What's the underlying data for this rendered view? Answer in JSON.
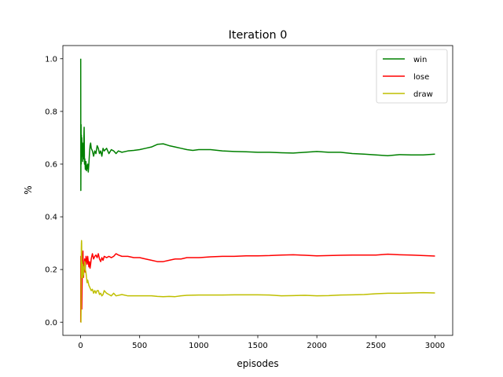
{
  "chart_data": {
    "type": "line",
    "title": "Iteration 0",
    "xlabel": "episodes",
    "ylabel": "%",
    "xlim": [
      -150,
      3150
    ],
    "ylim": [
      -0.05,
      1.05
    ],
    "xticks": [
      0,
      500,
      1000,
      1500,
      2000,
      2500,
      3000
    ],
    "xtick_labels": [
      "0",
      "500",
      "1000",
      "1500",
      "2000",
      "2500",
      "3000"
    ],
    "yticks": [
      0.0,
      0.2,
      0.4,
      0.6,
      0.8,
      1.0
    ],
    "ytick_labels": [
      "0.0",
      "0.2",
      "0.4",
      "0.6",
      "0.8",
      "1.0"
    ],
    "grid": false,
    "legend_position": "top-right",
    "series": [
      {
        "name": "win",
        "color": "#008000",
        "points": [
          [
            1,
            1.0
          ],
          [
            2,
            0.5
          ],
          [
            3,
            0.67
          ],
          [
            4,
            0.75
          ],
          [
            5,
            0.6
          ],
          [
            6,
            0.67
          ],
          [
            7,
            0.71
          ],
          [
            8,
            0.63
          ],
          [
            10,
            0.7
          ],
          [
            12,
            0.67
          ],
          [
            14,
            0.64
          ],
          [
            16,
            0.63
          ],
          [
            18,
            0.61
          ],
          [
            20,
            0.65
          ],
          [
            22,
            0.68
          ],
          [
            24,
            0.63
          ],
          [
            26,
            0.62
          ],
          [
            28,
            0.7
          ],
          [
            30,
            0.74
          ],
          [
            33,
            0.6
          ],
          [
            36,
            0.62
          ],
          [
            40,
            0.58
          ],
          [
            45,
            0.61
          ],
          [
            50,
            0.575
          ],
          [
            55,
            0.59
          ],
          [
            60,
            0.6
          ],
          [
            65,
            0.57
          ],
          [
            70,
            0.6
          ],
          [
            75,
            0.64
          ],
          [
            80,
            0.67
          ],
          [
            85,
            0.68
          ],
          [
            90,
            0.66
          ],
          [
            100,
            0.65
          ],
          [
            110,
            0.63
          ],
          [
            120,
            0.65
          ],
          [
            130,
            0.64
          ],
          [
            140,
            0.67
          ],
          [
            150,
            0.66
          ],
          [
            160,
            0.64
          ],
          [
            170,
            0.65
          ],
          [
            180,
            0.63
          ],
          [
            190,
            0.66
          ],
          [
            200,
            0.65
          ],
          [
            220,
            0.66
          ],
          [
            240,
            0.64
          ],
          [
            260,
            0.655
          ],
          [
            280,
            0.65
          ],
          [
            300,
            0.64
          ],
          [
            320,
            0.65
          ],
          [
            350,
            0.645
          ],
          [
            400,
            0.65
          ],
          [
            450,
            0.652
          ],
          [
            500,
            0.655
          ],
          [
            550,
            0.66
          ],
          [
            600,
            0.665
          ],
          [
            650,
            0.675
          ],
          [
            700,
            0.677
          ],
          [
            750,
            0.67
          ],
          [
            800,
            0.665
          ],
          [
            850,
            0.66
          ],
          [
            900,
            0.655
          ],
          [
            950,
            0.652
          ],
          [
            1000,
            0.655
          ],
          [
            1100,
            0.655
          ],
          [
            1200,
            0.65
          ],
          [
            1300,
            0.648
          ],
          [
            1400,
            0.647
          ],
          [
            1500,
            0.645
          ],
          [
            1600,
            0.645
          ],
          [
            1700,
            0.643
          ],
          [
            1800,
            0.642
          ],
          [
            1900,
            0.645
          ],
          [
            2000,
            0.648
          ],
          [
            2100,
            0.645
          ],
          [
            2200,
            0.645
          ],
          [
            2300,
            0.64
          ],
          [
            2400,
            0.638
          ],
          [
            2500,
            0.635
          ],
          [
            2600,
            0.632
          ],
          [
            2700,
            0.636
          ],
          [
            2800,
            0.635
          ],
          [
            2900,
            0.635
          ],
          [
            3000,
            0.638
          ]
        ]
      },
      {
        "name": "lose",
        "color": "#ff0000",
        "points": [
          [
            1,
            0.0
          ],
          [
            2,
            0.25
          ],
          [
            4,
            0.1
          ],
          [
            6,
            0.15
          ],
          [
            8,
            0.2
          ],
          [
            10,
            0.05
          ],
          [
            12,
            0.12
          ],
          [
            14,
            0.18
          ],
          [
            16,
            0.22
          ],
          [
            18,
            0.26
          ],
          [
            20,
            0.27
          ],
          [
            22,
            0.2
          ],
          [
            25,
            0.17
          ],
          [
            28,
            0.22
          ],
          [
            30,
            0.2
          ],
          [
            34,
            0.24
          ],
          [
            38,
            0.19
          ],
          [
            42,
            0.23
          ],
          [
            46,
            0.25
          ],
          [
            50,
            0.24
          ],
          [
            55,
            0.22
          ],
          [
            60,
            0.25
          ],
          [
            65,
            0.23
          ],
          [
            70,
            0.21
          ],
          [
            75,
            0.23
          ],
          [
            80,
            0.205
          ],
          [
            85,
            0.22
          ],
          [
            90,
            0.24
          ],
          [
            95,
            0.25
          ],
          [
            100,
            0.26
          ],
          [
            110,
            0.24
          ],
          [
            120,
            0.25
          ],
          [
            130,
            0.255
          ],
          [
            140,
            0.245
          ],
          [
            150,
            0.26
          ],
          [
            160,
            0.24
          ],
          [
            170,
            0.23
          ],
          [
            180,
            0.245
          ],
          [
            190,
            0.235
          ],
          [
            200,
            0.25
          ],
          [
            220,
            0.245
          ],
          [
            240,
            0.25
          ],
          [
            260,
            0.245
          ],
          [
            280,
            0.25
          ],
          [
            300,
            0.26
          ],
          [
            320,
            0.255
          ],
          [
            350,
            0.25
          ],
          [
            400,
            0.25
          ],
          [
            450,
            0.245
          ],
          [
            500,
            0.245
          ],
          [
            550,
            0.24
          ],
          [
            600,
            0.235
          ],
          [
            650,
            0.23
          ],
          [
            700,
            0.23
          ],
          [
            750,
            0.235
          ],
          [
            800,
            0.24
          ],
          [
            850,
            0.24
          ],
          [
            900,
            0.245
          ],
          [
            950,
            0.245
          ],
          [
            1000,
            0.245
          ],
          [
            1100,
            0.248
          ],
          [
            1200,
            0.25
          ],
          [
            1300,
            0.25
          ],
          [
            1400,
            0.252
          ],
          [
            1500,
            0.252
          ],
          [
            1600,
            0.253
          ],
          [
            1700,
            0.255
          ],
          [
            1800,
            0.256
          ],
          [
            1900,
            0.254
          ],
          [
            2000,
            0.252
          ],
          [
            2100,
            0.253
          ],
          [
            2200,
            0.254
          ],
          [
            2300,
            0.255
          ],
          [
            2400,
            0.255
          ],
          [
            2500,
            0.255
          ],
          [
            2600,
            0.258
          ],
          [
            2700,
            0.256
          ],
          [
            2800,
            0.255
          ],
          [
            2900,
            0.253
          ],
          [
            3000,
            0.251
          ]
        ]
      },
      {
        "name": "draw",
        "color": "#bfbf00",
        "points": [
          [
            1,
            0.0
          ],
          [
            2,
            0.0
          ],
          [
            3,
            0.0
          ],
          [
            4,
            0.05
          ],
          [
            5,
            0.2
          ],
          [
            6,
            0.28
          ],
          [
            7,
            0.3
          ],
          [
            8,
            0.31
          ],
          [
            9,
            0.3
          ],
          [
            10,
            0.2
          ],
          [
            12,
            0.23
          ],
          [
            14,
            0.17
          ],
          [
            16,
            0.2
          ],
          [
            18,
            0.22
          ],
          [
            20,
            0.17
          ],
          [
            22,
            0.21
          ],
          [
            25,
            0.18
          ],
          [
            28,
            0.21
          ],
          [
            30,
            0.2
          ],
          [
            35,
            0.23
          ],
          [
            40,
            0.2
          ],
          [
            45,
            0.19
          ],
          [
            50,
            0.17
          ],
          [
            55,
            0.15
          ],
          [
            60,
            0.16
          ],
          [
            70,
            0.14
          ],
          [
            80,
            0.13
          ],
          [
            90,
            0.12
          ],
          [
            100,
            0.125
          ],
          [
            110,
            0.11
          ],
          [
            120,
            0.12
          ],
          [
            130,
            0.11
          ],
          [
            140,
            0.12
          ],
          [
            150,
            0.12
          ],
          [
            160,
            0.105
          ],
          [
            170,
            0.11
          ],
          [
            180,
            0.1
          ],
          [
            190,
            0.105
          ],
          [
            200,
            0.12
          ],
          [
            220,
            0.11
          ],
          [
            240,
            0.105
          ],
          [
            260,
            0.1
          ],
          [
            280,
            0.11
          ],
          [
            300,
            0.1
          ],
          [
            350,
            0.105
          ],
          [
            400,
            0.1
          ],
          [
            450,
            0.1
          ],
          [
            500,
            0.1
          ],
          [
            550,
            0.1
          ],
          [
            600,
            0.1
          ],
          [
            650,
            0.098
          ],
          [
            700,
            0.097
          ],
          [
            750,
            0.098
          ],
          [
            800,
            0.097
          ],
          [
            850,
            0.1
          ],
          [
            900,
            0.102
          ],
          [
            1000,
            0.103
          ],
          [
            1100,
            0.103
          ],
          [
            1200,
            0.103
          ],
          [
            1300,
            0.104
          ],
          [
            1400,
            0.104
          ],
          [
            1500,
            0.104
          ],
          [
            1600,
            0.103
          ],
          [
            1700,
            0.1
          ],
          [
            1800,
            0.101
          ],
          [
            1900,
            0.102
          ],
          [
            2000,
            0.1
          ],
          [
            2100,
            0.101
          ],
          [
            2200,
            0.103
          ],
          [
            2300,
            0.104
          ],
          [
            2400,
            0.105
          ],
          [
            2500,
            0.108
          ],
          [
            2600,
            0.11
          ],
          [
            2700,
            0.11
          ],
          [
            2800,
            0.111
          ],
          [
            2900,
            0.112
          ],
          [
            3000,
            0.111
          ]
        ]
      }
    ]
  }
}
